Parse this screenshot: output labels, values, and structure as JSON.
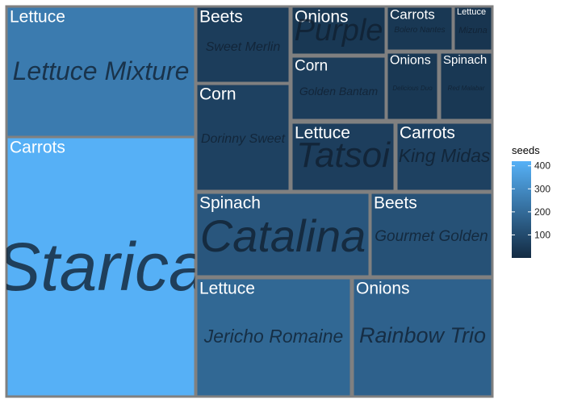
{
  "chart_data": {
    "type": "treemap",
    "size_variable": "",
    "fill_variable": "seeds",
    "color_scale": {
      "low": "#132b43",
      "high": "#56b1f7",
      "min": 0,
      "max": 420
    },
    "legend": {
      "title": "seeds",
      "position": "right",
      "ticks": [
        100,
        200,
        300,
        400
      ]
    },
    "tiles": [
      {
        "vegetable": "Carrots",
        "variety": "Starica",
        "seeds": 417
      },
      {
        "vegetable": "Lettuce",
        "variety": "Lettuce Mixture",
        "seeds": 252
      },
      {
        "vegetable": "Spinach",
        "variety": "Catalina",
        "seeds": 135
      },
      {
        "vegetable": "Lettuce",
        "variety": "Jericho Romaine",
        "seeds": 190
      },
      {
        "vegetable": "Onions",
        "variety": "Rainbow Trio",
        "seeds": 170
      },
      {
        "vegetable": "Corn",
        "variety": "Dorinny Sweet",
        "seeds": 70
      },
      {
        "vegetable": "Beets",
        "variety": "Gourmet Golden",
        "seeds": 120
      },
      {
        "vegetable": "Beets",
        "variety": "Sweet Merlin",
        "seeds": 55
      },
      {
        "vegetable": "Lettuce",
        "variety": "Tatsoi",
        "seeds": 60
      },
      {
        "vegetable": "Carrots",
        "variety": "King Midas",
        "seeds": 70
      },
      {
        "vegetable": "Corn",
        "variety": "Golden Bantam",
        "seeds": 55
      },
      {
        "vegetable": "Onions",
        "variety": "Purple",
        "seeds": 40
      },
      {
        "vegetable": "Onions",
        "variety": "Delicious Duo",
        "seeds": 40
      },
      {
        "vegetable": "Spinach",
        "variety": "Red Malabar",
        "seeds": 40
      },
      {
        "vegetable": "Carrots",
        "variety": "Bolero Nantes",
        "seeds": 40
      },
      {
        "vegetable": "Lettuce",
        "variety": "Mizuna",
        "seeds": 30
      }
    ]
  }
}
